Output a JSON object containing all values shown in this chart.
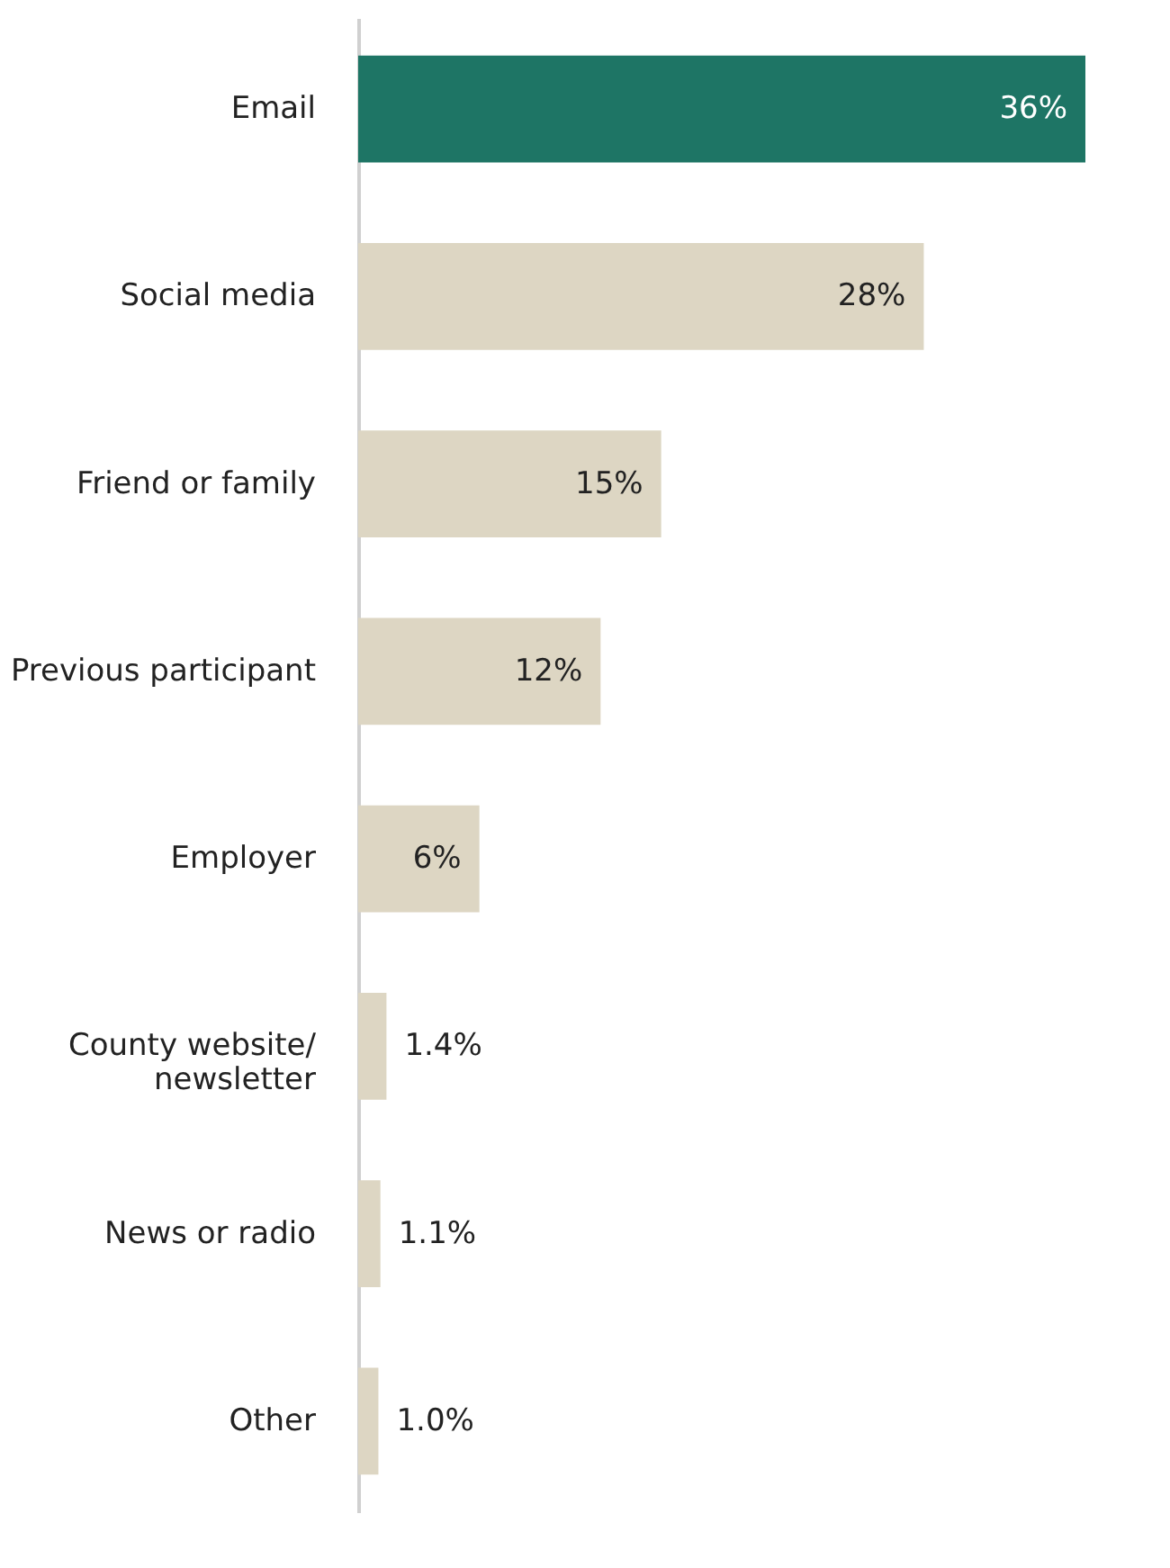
{
  "chart_data": {
    "type": "bar",
    "orientation": "horizontal",
    "categories": [
      "Email",
      "Social media",
      "Friend or family",
      "Previous participant",
      "Employer",
      "County website/\nnewsletter",
      "News or radio",
      "Other"
    ],
    "values": [
      36,
      28,
      15,
      12,
      6,
      1.4,
      1.1,
      1.0
    ],
    "value_labels": [
      "36%",
      "28%",
      "15%",
      "12%",
      "6%",
      "1.4%",
      "1.1%",
      "1.0%"
    ],
    "colors": [
      "#1e7565",
      "#ddd6c3",
      "#ddd6c3",
      "#ddd6c3",
      "#ddd6c3",
      "#ddd6c3",
      "#ddd6c3",
      "#ddd6c3"
    ],
    "grid": false
  }
}
